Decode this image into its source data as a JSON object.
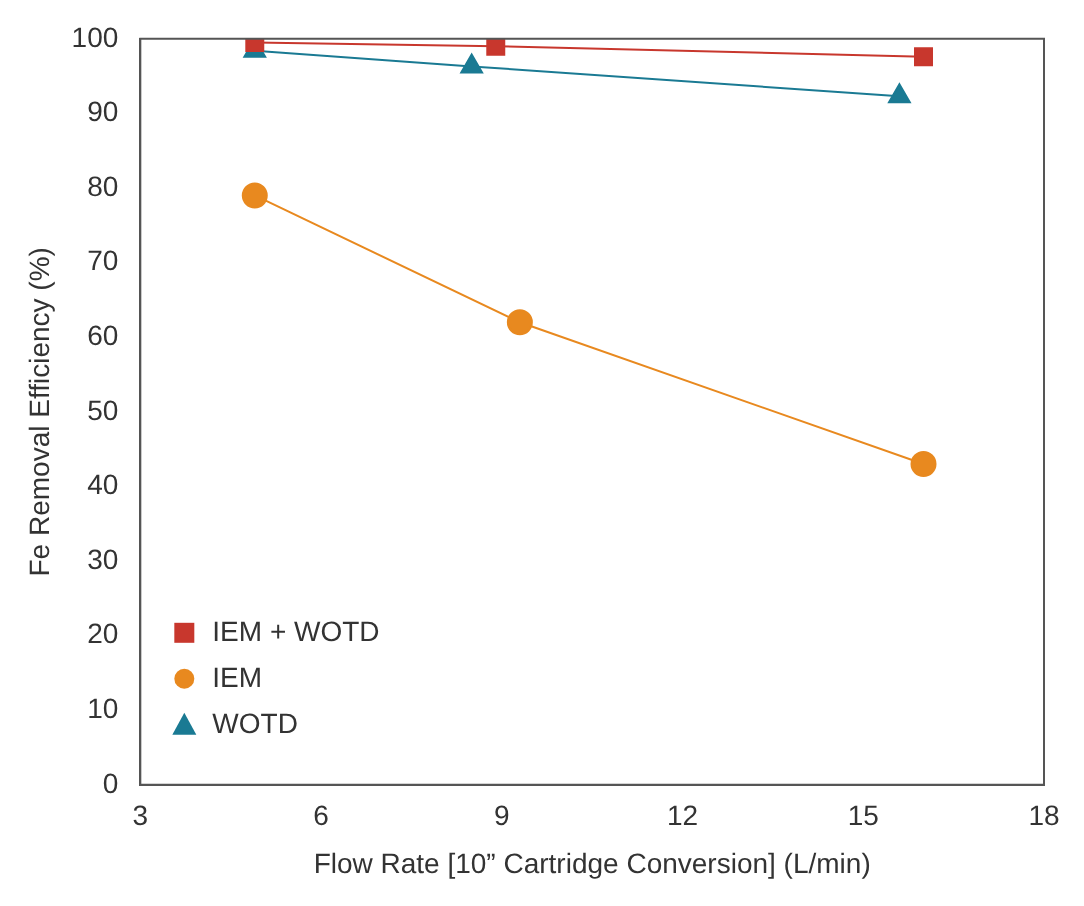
{
  "chart_data": {
    "type": "line",
    "xlabel": "Flow Rate [10” Cartridge Conversion] (L/min)",
    "ylabel": "Fe Removal Efficiency (%)",
    "xlim": [
      3,
      18
    ],
    "xticks": [
      3,
      6,
      9,
      12,
      15,
      18
    ],
    "ylim": [
      0,
      100
    ],
    "yticks": [
      0,
      10,
      20,
      30,
      40,
      50,
      60,
      70,
      80,
      90,
      100
    ],
    "grid": false,
    "legend": "bottom left",
    "series": [
      {
        "name": "IEM + WOTD",
        "color": "#c8372d",
        "marker": "square",
        "x": [
          4.9,
          8.9,
          16.0
        ],
        "values": [
          99.5,
          99,
          97.6
        ]
      },
      {
        "name": "IEM",
        "color": "#e8891f",
        "marker": "circle",
        "x": [
          4.9,
          9.3,
          16.0
        ],
        "values": [
          79,
          62,
          43
        ]
      },
      {
        "name": "WOTD",
        "color": "#1a7a93",
        "marker": "triangle",
        "x": [
          4.9,
          8.5,
          15.6
        ],
        "values": [
          98.4,
          96.3,
          92.3
        ]
      }
    ]
  }
}
